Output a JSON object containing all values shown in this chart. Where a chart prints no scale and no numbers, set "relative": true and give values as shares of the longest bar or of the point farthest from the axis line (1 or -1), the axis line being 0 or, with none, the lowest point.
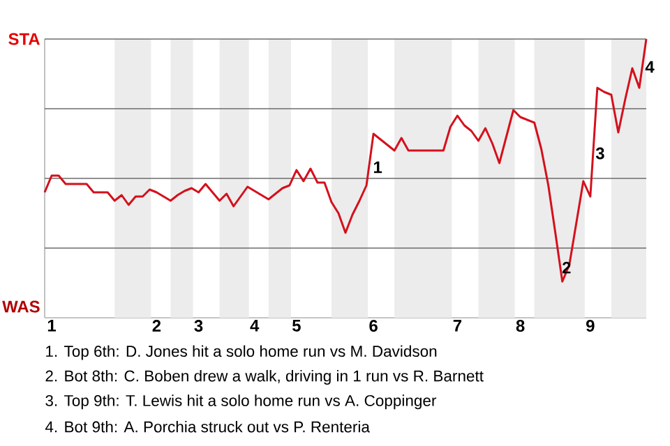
{
  "chart_data": {
    "type": "line",
    "relative": true,
    "categories": [
      null,
      "1",
      null,
      null,
      null,
      null,
      null,
      null,
      null,
      null,
      null,
      null,
      null,
      null,
      null,
      null,
      "2",
      null,
      null,
      null,
      null,
      null,
      "3",
      null,
      null,
      null,
      null,
      null,
      null,
      null,
      "4",
      null,
      null,
      null,
      null,
      null,
      "5",
      null,
      null,
      null,
      null,
      null,
      null,
      null,
      null,
      null,
      null,
      "6",
      null,
      null,
      null,
      null,
      null,
      null,
      null,
      null,
      null,
      null,
      null,
      "7",
      null,
      null,
      null,
      null,
      null,
      null,
      null,
      null,
      "8",
      null,
      null,
      null,
      null,
      null,
      null,
      null,
      null,
      null,
      "9",
      null,
      null,
      null,
      null,
      null,
      null,
      null,
      null
    ],
    "series": [
      {
        "color": "#d4101c",
        "values": [
          0.45,
          0.51,
          0.51,
          0.48,
          0.48,
          0.48,
          0.48,
          0.45,
          0.45,
          0.45,
          0.42,
          0.44,
          0.405,
          0.435,
          0.435,
          0.46,
          0.45,
          0.435,
          0.42,
          0.44,
          0.455,
          0.465,
          0.45,
          0.48,
          0.45,
          0.42,
          0.445,
          0.4,
          0.435,
          0.47,
          0.455,
          0.44,
          0.425,
          0.445,
          0.465,
          0.475,
          0.53,
          0.49,
          0.535,
          0.485,
          0.485,
          0.415,
          0.375,
          0.305,
          0.37,
          0.42,
          0.475,
          0.66,
          0.64,
          0.62,
          0.6,
          0.645,
          0.6,
          0.6,
          0.6,
          0.6,
          0.6,
          0.6,
          0.685,
          0.725,
          0.69,
          0.67,
          0.635,
          0.68,
          0.625,
          0.555,
          0.65,
          0.745,
          0.72,
          0.71,
          0.7,
          0.605,
          0.475,
          0.305,
          0.13,
          0.19,
          0.34,
          0.49,
          0.435,
          0.825,
          0.81,
          0.8,
          0.665,
          0.785,
          0.895,
          0.825,
          1.0
        ]
      }
    ],
    "grid": "y",
    "marker": "none",
    "line_style": "solid",
    "annotations": [
      "STA",
      "WAS",
      "1",
      "2",
      "3",
      "4",
      "1. Top 6th: D. Jones hit a solo home run vs M. Davidson",
      "2. Bot 8th: C. Boben drew a walk, driving in 1 run vs R. Barnett",
      "3. Top 9th: T. Lewis hit a solo home run vs A. Coppinger",
      "4. Bot 9th: A. Porchia struck out vs P. Renteria"
    ]
  }
}
